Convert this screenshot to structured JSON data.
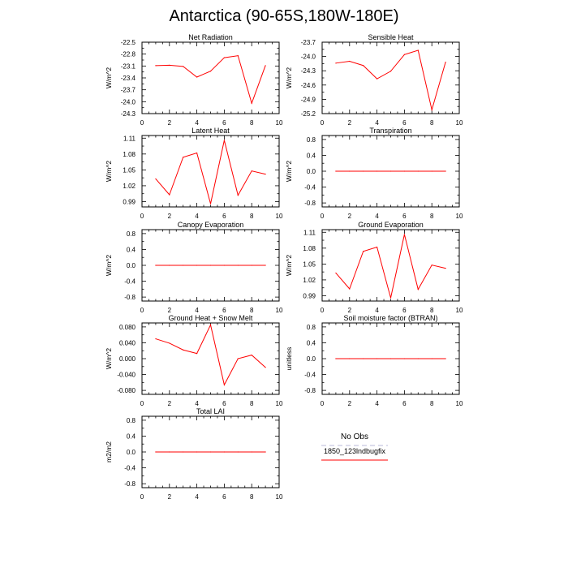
{
  "page": {
    "title": "Antarctica (90-65S,180W-180E)"
  },
  "legend": {
    "entries": [
      {
        "label": "No Obs",
        "color": "#b8b8d8",
        "dashed": true
      },
      {
        "label": "1850_123lndbugfix",
        "color": "#ff0000",
        "dashed": false
      }
    ]
  },
  "chart_data": [
    {
      "type": "line",
      "title": "Net Radiation",
      "ylabel": "W/m^2",
      "xlim": [
        0,
        10
      ],
      "ylim": [
        -24.3,
        -22.5
      ],
      "xticks": [
        0,
        2,
        4,
        6,
        8,
        10
      ],
      "yticks": [
        -24.3,
        -24.0,
        -23.7,
        -23.4,
        -23.1,
        -22.8,
        -22.5
      ],
      "yticklabels": [
        "-24.3",
        "-24.0",
        "-23.7",
        "-23.4",
        "-23.1",
        "-22.8",
        "-22.5"
      ],
      "series": [
        {
          "name": "1850_123lndbugfix",
          "color": "#ff0000",
          "x": [
            1,
            2,
            3,
            4,
            5,
            6,
            7,
            8,
            9
          ],
          "y": [
            -23.09,
            -23.08,
            -23.11,
            -23.38,
            -23.23,
            -22.89,
            -22.84,
            -24.04,
            -23.09
          ]
        }
      ]
    },
    {
      "type": "line",
      "title": "Sensible Heat",
      "ylabel": "W/m^2",
      "xlim": [
        0,
        10
      ],
      "ylim": [
        -25.2,
        -23.7
      ],
      "xticks": [
        0,
        2,
        4,
        6,
        8,
        10
      ],
      "yticks": [
        -25.2,
        -24.9,
        -24.6,
        -24.3,
        -24.0,
        -23.7
      ],
      "yticklabels": [
        "-25.2",
        "-24.9",
        "-24.6",
        "-24.3",
        "-24.0",
        "-23.7"
      ],
      "series": [
        {
          "name": "1850_123lndbugfix",
          "color": "#ff0000",
          "x": [
            1,
            2,
            3,
            4,
            5,
            6,
            7,
            8,
            9
          ],
          "y": [
            -24.14,
            -24.1,
            -24.19,
            -24.47,
            -24.31,
            -23.96,
            -23.87,
            -25.12,
            -24.12
          ]
        }
      ]
    },
    {
      "type": "line",
      "title": "Latent Heat",
      "ylabel": "W/m^2",
      "xlim": [
        0,
        10
      ],
      "ylim": [
        0.98,
        1.115
      ],
      "xticks": [
        0,
        2,
        4,
        6,
        8,
        10
      ],
      "yticks": [
        0.99,
        1.02,
        1.05,
        1.08,
        1.11
      ],
      "yticklabels": [
        "0.99",
        "1.02",
        "1.05",
        "1.08",
        "1.11"
      ],
      "series": [
        {
          "name": "1850_123lndbugfix",
          "color": "#ff0000",
          "x": [
            1,
            2,
            3,
            4,
            5,
            6,
            7,
            8,
            9
          ],
          "y": [
            1.033,
            1.003,
            1.074,
            1.082,
            0.986,
            1.106,
            1.002,
            1.048,
            1.042
          ]
        }
      ]
    },
    {
      "type": "line",
      "title": "Transpiration",
      "ylabel": "W/m^2",
      "xlim": [
        0,
        10
      ],
      "ylim": [
        -0.9,
        0.9
      ],
      "xticks": [
        0,
        2,
        4,
        6,
        8,
        10
      ],
      "yticks": [
        -0.8,
        -0.4,
        0.0,
        0.4,
        0.8
      ],
      "yticklabels": [
        "-0.8",
        "-0.4",
        "0.0",
        "0.4",
        "0.8"
      ],
      "series": [
        {
          "name": "1850_123lndbugfix",
          "color": "#ff0000",
          "x": [
            1,
            2,
            3,
            4,
            5,
            6,
            7,
            8,
            9
          ],
          "y": [
            0,
            0,
            0,
            0,
            0,
            0,
            0,
            0,
            0
          ]
        }
      ]
    },
    {
      "type": "line",
      "title": "Canopy Evaporation",
      "ylabel": "W/m^2",
      "xlim": [
        0,
        10
      ],
      "ylim": [
        -0.9,
        0.9
      ],
      "xticks": [
        0,
        2,
        4,
        6,
        8,
        10
      ],
      "yticks": [
        -0.8,
        -0.4,
        0.0,
        0.4,
        0.8
      ],
      "yticklabels": [
        "-0.8",
        "-0.4",
        "0.0",
        "0.4",
        "0.8"
      ],
      "series": [
        {
          "name": "1850_123lndbugfix",
          "color": "#ff0000",
          "x": [
            1,
            2,
            3,
            4,
            5,
            6,
            7,
            8,
            9
          ],
          "y": [
            0,
            0,
            0,
            0,
            0,
            0,
            0,
            0,
            0
          ]
        }
      ]
    },
    {
      "type": "line",
      "title": "Ground Evaporation",
      "ylabel": "W/m^2",
      "xlim": [
        0,
        10
      ],
      "ylim": [
        0.98,
        1.115
      ],
      "xticks": [
        0,
        2,
        4,
        6,
        8,
        10
      ],
      "yticks": [
        0.99,
        1.02,
        1.05,
        1.08,
        1.11
      ],
      "yticklabels": [
        "0.99",
        "1.02",
        "1.05",
        "1.08",
        "1.11"
      ],
      "series": [
        {
          "name": "1850_123lndbugfix",
          "color": "#ff0000",
          "x": [
            1,
            2,
            3,
            4,
            5,
            6,
            7,
            8,
            9
          ],
          "y": [
            1.033,
            1.003,
            1.074,
            1.082,
            0.986,
            1.106,
            1.002,
            1.048,
            1.042
          ]
        }
      ]
    },
    {
      "type": "line",
      "title": "Ground Heat + Snow Melt",
      "ylabel": "W/m^2",
      "xlim": [
        0,
        10
      ],
      "ylim": [
        -0.09,
        0.09
      ],
      "xticks": [
        0,
        2,
        4,
        6,
        8,
        10
      ],
      "yticks": [
        -0.08,
        -0.04,
        0.0,
        0.04,
        0.08
      ],
      "yticklabels": [
        "-0.080",
        "-0.040",
        "0.000",
        "0.040",
        "0.080"
      ],
      "series": [
        {
          "name": "1850_123lndbugfix",
          "color": "#ff0000",
          "x": [
            1,
            2,
            3,
            4,
            5,
            6,
            7,
            8,
            9
          ],
          "y": [
            0.05,
            0.039,
            0.022,
            0.013,
            0.085,
            -0.066,
            0.0,
            0.009,
            -0.022
          ]
        }
      ]
    },
    {
      "type": "line",
      "title": "Soil moisture factor (BTRAN)",
      "ylabel": "unitless",
      "xlim": [
        0,
        10
      ],
      "ylim": [
        -0.9,
        0.9
      ],
      "xticks": [
        0,
        2,
        4,
        6,
        8,
        10
      ],
      "yticks": [
        -0.8,
        -0.4,
        0.0,
        0.4,
        0.8
      ],
      "yticklabels": [
        "-0.8",
        "-0.4",
        "0.0",
        "0.4",
        "0.8"
      ],
      "series": [
        {
          "name": "1850_123lndbugfix",
          "color": "#ff0000",
          "x": [
            1,
            2,
            3,
            4,
            5,
            6,
            7,
            8,
            9
          ],
          "y": [
            0,
            0,
            0,
            0,
            0,
            0,
            0,
            0,
            0
          ]
        }
      ]
    },
    {
      "type": "line",
      "title": "Total LAI",
      "ylabel": "m2/m2",
      "xlim": [
        0,
        10
      ],
      "ylim": [
        -0.9,
        0.9
      ],
      "xticks": [
        0,
        2,
        4,
        6,
        8,
        10
      ],
      "yticks": [
        -0.8,
        -0.4,
        0.0,
        0.4,
        0.8
      ],
      "yticklabels": [
        "-0.8",
        "-0.4",
        "0.0",
        "0.4",
        "0.8"
      ],
      "series": [
        {
          "name": "1850_123lndbugfix",
          "color": "#ff0000",
          "x": [
            1,
            2,
            3,
            4,
            5,
            6,
            7,
            8,
            9
          ],
          "y": [
            0,
            0,
            0,
            0,
            0,
            0,
            0,
            0,
            0
          ]
        }
      ]
    }
  ]
}
